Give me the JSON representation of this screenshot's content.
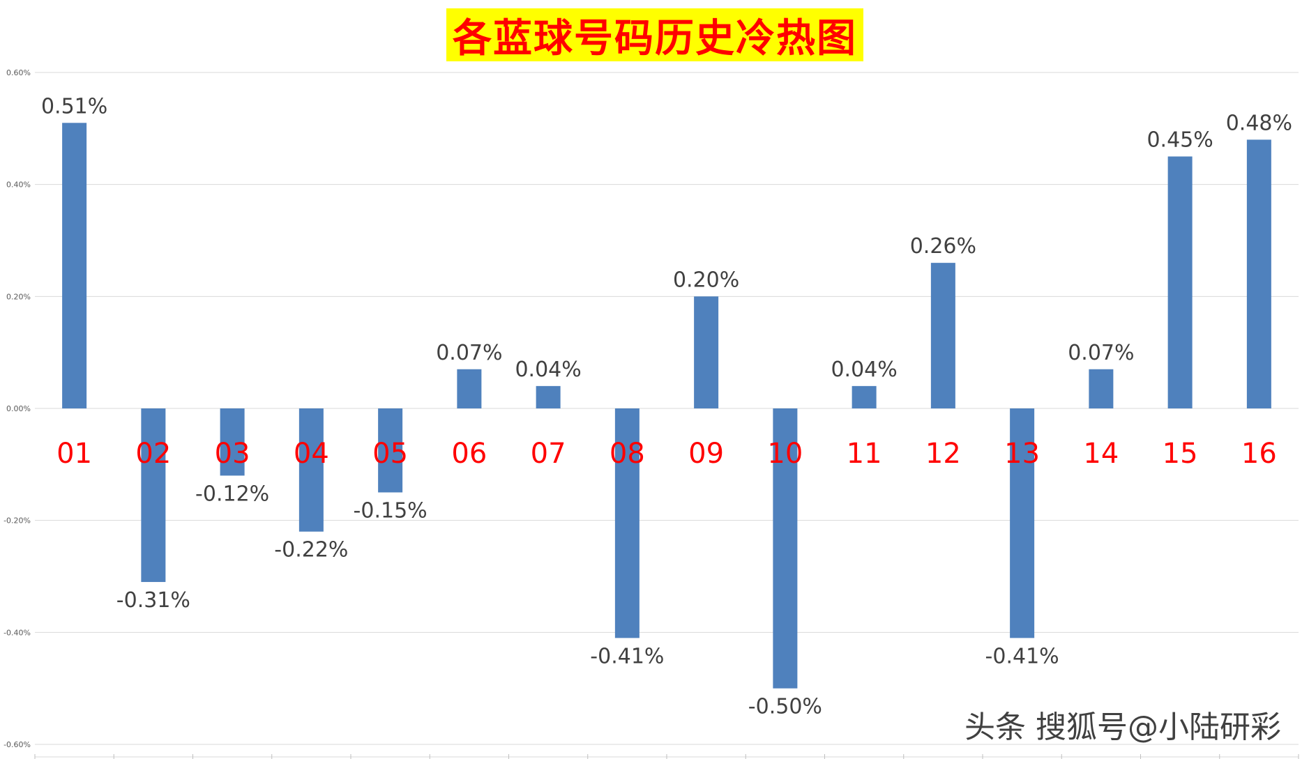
{
  "chart_data": {
    "type": "bar",
    "title": "各蓝球号码历史冷热图",
    "categories": [
      "01",
      "02",
      "03",
      "04",
      "05",
      "06",
      "07",
      "08",
      "09",
      "10",
      "11",
      "12",
      "13",
      "14",
      "15",
      "16"
    ],
    "values": [
      0.51,
      -0.31,
      -0.12,
      -0.22,
      -0.15,
      0.07,
      0.04,
      -0.41,
      0.2,
      -0.5,
      0.04,
      0.26,
      -0.41,
      0.07,
      0.45,
      0.48
    ],
    "data_labels": [
      "0.51%",
      "-0.31%",
      "-0.12%",
      "-0.22%",
      "-0.15%",
      "0.07%",
      "0.04%",
      "-0.41%",
      "0.20%",
      "-0.50%",
      "0.04%",
      "0.26%",
      "-0.41%",
      "0.07%",
      "0.45%",
      "0.48%"
    ],
    "yticks": [
      0.6,
      0.4,
      0.2,
      0.0,
      -0.2,
      -0.4,
      -0.6
    ],
    "ytick_labels": [
      "0.60%",
      "0.40%",
      "0.20%",
      "0.00%",
      "-0.20%",
      "-0.40%",
      "-0.60%"
    ],
    "ylim": [
      -0.6,
      0.6
    ],
    "xlabel": "",
    "ylabel": "",
    "grid": true,
    "colors": {
      "bar": "#4f81bd",
      "category_label": "#ff0000",
      "data_label": "#404040",
      "grid": "#d9d9d9",
      "title_bg": "#ffff00",
      "title_text": "#ff0000"
    }
  },
  "watermark": "头条 搜狐号@小陆研彩"
}
